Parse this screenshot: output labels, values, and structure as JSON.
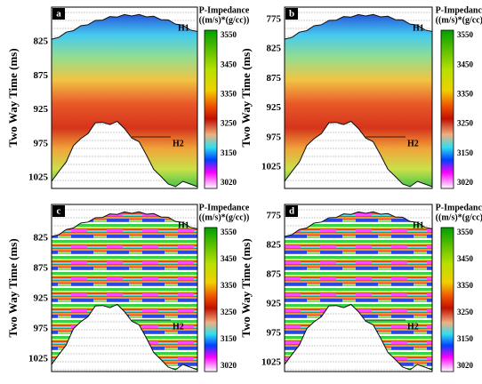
{
  "panels": [
    {
      "label": "a",
      "ylabel": "Two Way Time (ms)",
      "yticks": [
        "825",
        "875",
        "925",
        "975",
        "1025"
      ],
      "horizons": [
        "H1",
        "H2"
      ],
      "colorbar": {
        "title": [
          "P-Impedance",
          "((m/s)*(g/cc))"
        ],
        "ticks": [
          "3550",
          "3450",
          "3350",
          "3250",
          "3150",
          "3020"
        ]
      }
    },
    {
      "label": "b",
      "ylabel": "Two Way Time (ms)",
      "yticks": [
        "775",
        "825",
        "875",
        "925",
        "975",
        "1025"
      ],
      "horizons": [
        "H1",
        "H2"
      ],
      "colorbar": {
        "title": [
          "P-Impedance",
          "((m/s)*(g/cc))"
        ],
        "ticks": [
          "3550",
          "3450",
          "3350",
          "3250",
          "3150",
          "3020"
        ]
      }
    },
    {
      "label": "c",
      "ylabel": "Two Way Time (ms)",
      "yticks": [
        "825",
        "875",
        "925",
        "975",
        "1025"
      ],
      "horizons": [
        "H1",
        "H2"
      ],
      "colorbar": {
        "title": [
          "P-Impedance",
          "((m/s)*(g/cc))"
        ],
        "ticks": [
          "3550",
          "3450",
          "3350",
          "3250",
          "3150",
          "3020"
        ]
      }
    },
    {
      "label": "d",
      "ylabel": "Two Way Time (ms)",
      "yticks": [
        "775",
        "825",
        "875",
        "925",
        "975",
        "1025"
      ],
      "horizons": [
        "H1",
        "H2"
      ],
      "colorbar": {
        "title": [
          "P-Impedance",
          "((m/s)*(g/cc))"
        ],
        "ticks": [
          "3550",
          "3450",
          "3350",
          "3250",
          "3150",
          "3020"
        ]
      }
    }
  ]
}
